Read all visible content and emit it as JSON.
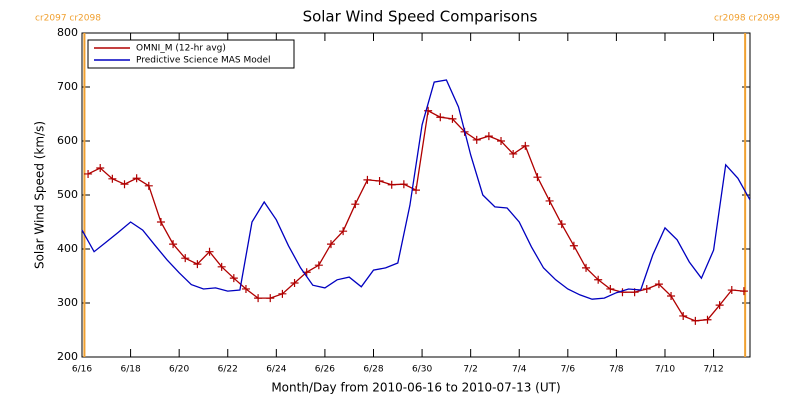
{
  "chart_data": {
    "type": "line",
    "title": "Solar Wind Speed Comparisons",
    "xlabel": "Month/Day from 2010-06-16 to 2010-07-13 (UT)",
    "ylabel": "Solar Wind Speed (km/s)",
    "xlim": [
      0,
      27.5
    ],
    "xticks": [
      {
        "value": 0,
        "label": "6/16"
      },
      {
        "value": 2,
        "label": "6/18"
      },
      {
        "value": 4,
        "label": "6/20"
      },
      {
        "value": 6,
        "label": "6/22"
      },
      {
        "value": 8,
        "label": "6/24"
      },
      {
        "value": 10,
        "label": "6/26"
      },
      {
        "value": 12,
        "label": "6/28"
      },
      {
        "value": 14,
        "label": "6/30"
      },
      {
        "value": 16,
        "label": "7/2"
      },
      {
        "value": 18,
        "label": "7/4"
      },
      {
        "value": 20,
        "label": "7/6"
      },
      {
        "value": 22,
        "label": "7/8"
      },
      {
        "value": 24,
        "label": "7/10"
      },
      {
        "value": 26,
        "label": "7/12"
      }
    ],
    "ylim": [
      200,
      800
    ],
    "yticks": [
      200,
      300,
      400,
      500,
      600,
      700,
      800
    ],
    "legend": "upper left",
    "annotations": [
      {
        "text": "cr2097 cr2098",
        "x": 0.1,
        "color": "#f0a030"
      },
      {
        "text": "cr2098 cr2099",
        "x": 27.3,
        "color": "#f0a030"
      }
    ],
    "series": [
      {
        "name": "OMNI_M (12-hr avg)",
        "color": "#b00000",
        "markers": true,
        "x": [
          0.25,
          0.75,
          1.25,
          1.75,
          2.25,
          2.75,
          3.25,
          3.75,
          4.25,
          4.75,
          5.25,
          5.75,
          6.25,
          6.75,
          7.25,
          7.75,
          8.25,
          8.75,
          9.25,
          9.75,
          10.25,
          10.75,
          11.25,
          11.75,
          12.25,
          12.75,
          13.25,
          13.75,
          14.25,
          14.75,
          15.25,
          15.75,
          16.25,
          16.75,
          17.25,
          17.75,
          18.25,
          18.75,
          19.25,
          19.75,
          20.25,
          20.75,
          21.25,
          21.75,
          22.25,
          22.75,
          23.25,
          23.75,
          24.25,
          24.75,
          25.25,
          25.75,
          26.25,
          26.75,
          27.25
        ],
        "values": [
          539,
          550,
          530,
          520,
          531,
          517,
          450,
          409,
          383,
          372,
          395,
          367,
          346,
          326,
          309,
          309,
          317,
          337,
          357,
          370,
          409,
          433,
          483,
          528,
          526,
          519,
          520,
          509,
          656,
          644,
          641,
          617,
          602,
          609,
          600,
          576,
          591,
          533,
          489,
          446,
          406,
          365,
          343,
          326,
          320,
          320,
          326,
          335,
          313,
          276,
          267,
          269,
          296,
          324,
          322
        ]
      },
      {
        "name": "Predictive Science MAS Model",
        "color": "#0000c0",
        "markers": false,
        "x": [
          0,
          0.5,
          1,
          1.5,
          2,
          2.5,
          3,
          3.5,
          4,
          4.5,
          5,
          5.5,
          6,
          6.5,
          7,
          7.5,
          8,
          8.5,
          9,
          9.5,
          10,
          10.5,
          11,
          11.5,
          12,
          12.5,
          13,
          13.5,
          14,
          14.5,
          15,
          15.5,
          16,
          16.5,
          17,
          17.5,
          18,
          18.5,
          19,
          19.5,
          20,
          20.5,
          21,
          21.5,
          22,
          22.5,
          23,
          23.5,
          24,
          24.5,
          25,
          25.5,
          26,
          26.5,
          27,
          27.5
        ],
        "values": [
          435,
          395,
          413,
          431,
          450,
          435,
          407,
          380,
          356,
          334,
          326,
          328,
          322,
          324,
          450,
          487,
          454,
          406,
          365,
          333,
          328,
          343,
          348,
          330,
          361,
          365,
          374,
          481,
          630,
          709,
          713,
          663,
          574,
          500,
          478,
          476,
          450,
          404,
          365,
          343,
          326,
          315,
          307,
          309,
          319,
          326,
          324,
          389,
          439,
          417,
          376,
          346,
          398,
          556,
          531,
          491
        ]
      }
    ]
  }
}
